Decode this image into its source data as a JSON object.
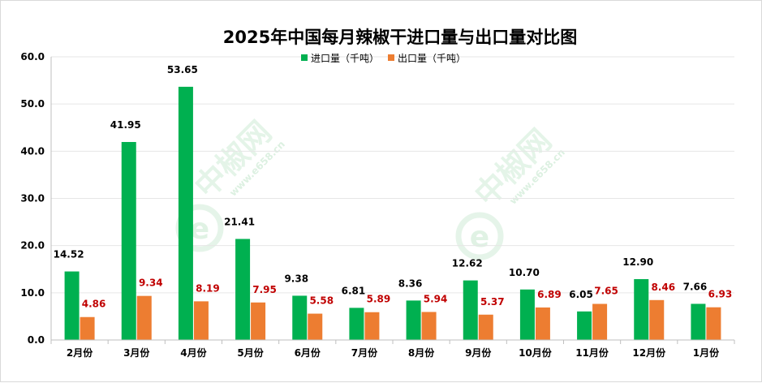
{
  "chart_data": {
    "type": "bar",
    "title": "2025年中国每月辣椒干进口量与出口量对比图",
    "categories": [
      "2月份",
      "3月份",
      "4月份",
      "5月份",
      "6月份",
      "7月份",
      "8月份",
      "9月份",
      "10月份",
      "11月份",
      "12月份",
      "1月份"
    ],
    "series": [
      {
        "name": "进口量（千吨）",
        "color": "#00b050",
        "label_color": "#000000",
        "values": [
          14.52,
          41.95,
          53.65,
          21.41,
          9.38,
          6.81,
          8.36,
          12.62,
          10.7,
          6.05,
          12.9,
          7.66
        ],
        "labels": [
          "14.52",
          "41.95",
          "53.65",
          "21.41",
          "9.38",
          "6.81",
          "8.36",
          "12.62",
          "10.70",
          "6.05",
          "12.90",
          "7.66"
        ]
      },
      {
        "name": "出口量（千吨）",
        "color": "#ed7d31",
        "label_color": "#c00000",
        "values": [
          4.86,
          9.34,
          8.19,
          7.95,
          5.58,
          5.89,
          5.94,
          5.37,
          6.89,
          7.65,
          8.46,
          6.93
        ],
        "labels": [
          "4.86",
          "9.34",
          "8.19",
          "7.95",
          "5.58",
          "5.89",
          "5.94",
          "5.37",
          "6.89",
          "7.65",
          "8.46",
          "6.93"
        ]
      }
    ],
    "y_ticks": [
      "0.0",
      "10.0",
      "20.0",
      "30.0",
      "40.0",
      "50.0",
      "60.0"
    ],
    "ylim": [
      0,
      60
    ],
    "grid": true,
    "legend_position": "top-center"
  },
  "watermark": {
    "text": "中椒网",
    "url": "www.e658.cn",
    "letter": "e",
    "color": "#2aa84a"
  }
}
